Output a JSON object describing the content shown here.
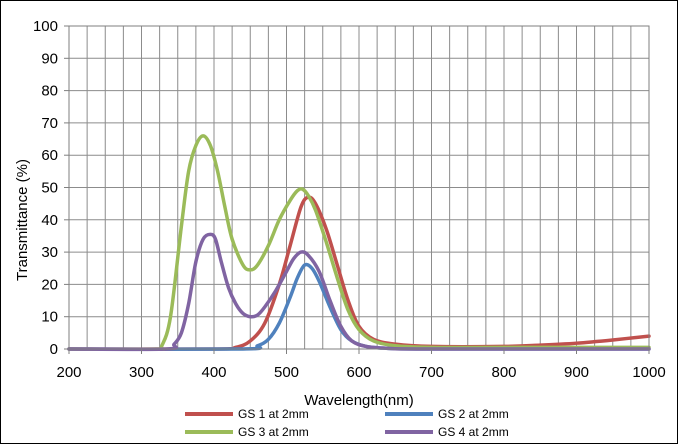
{
  "chart_data": {
    "type": "line",
    "xlabel": "Wavelength(nm)",
    "ylabel": "Transmittance (%)",
    "xlim": [
      200,
      1000
    ],
    "ylim": [
      0,
      100
    ],
    "x_major_ticks": [
      200,
      300,
      400,
      500,
      600,
      700,
      800,
      900,
      1000
    ],
    "y_major_ticks": [
      0,
      10,
      20,
      30,
      40,
      50,
      60,
      70,
      80,
      90,
      100
    ],
    "x_grid_step": 25,
    "y_grid_step": 10,
    "grid": true,
    "legend_position": "bottom",
    "series": [
      {
        "name": "GS 1 at 2mm",
        "color": "#C0504D",
        "points": [
          [
            200,
            0
          ],
          [
            400,
            0
          ],
          [
            430,
            0.5
          ],
          [
            450,
            2.5
          ],
          [
            470,
            8
          ],
          [
            490,
            20
          ],
          [
            505,
            32
          ],
          [
            520,
            44
          ],
          [
            530,
            47
          ],
          [
            540,
            45
          ],
          [
            555,
            37
          ],
          [
            570,
            26
          ],
          [
            585,
            15
          ],
          [
            600,
            7
          ],
          [
            620,
            3
          ],
          [
            650,
            1.5
          ],
          [
            700,
            0.8
          ],
          [
            800,
            0.8
          ],
          [
            850,
            1.2
          ],
          [
            900,
            1.8
          ],
          [
            950,
            2.8
          ],
          [
            1000,
            4
          ]
        ]
      },
      {
        "name": "GS 2 at 2mm",
        "color": "#4F81BD",
        "points": [
          [
            200,
            0
          ],
          [
            440,
            0
          ],
          [
            460,
            1
          ],
          [
            475,
            3
          ],
          [
            490,
            8
          ],
          [
            505,
            16
          ],
          [
            515,
            22
          ],
          [
            525,
            26
          ],
          [
            535,
            25
          ],
          [
            545,
            21
          ],
          [
            560,
            13
          ],
          [
            575,
            6
          ],
          [
            590,
            2.5
          ],
          [
            610,
            0.8
          ],
          [
            640,
            0.2
          ],
          [
            700,
            0
          ],
          [
            1000,
            0
          ]
        ]
      },
      {
        "name": "GS 3 at 2mm",
        "color": "#9BBB59",
        "points": [
          [
            200,
            0
          ],
          [
            320,
            0
          ],
          [
            328,
            1
          ],
          [
            340,
            10
          ],
          [
            355,
            38
          ],
          [
            365,
            55
          ],
          [
            375,
            63
          ],
          [
            385,
            66
          ],
          [
            395,
            63
          ],
          [
            405,
            55
          ],
          [
            415,
            44
          ],
          [
            425,
            34
          ],
          [
            440,
            26
          ],
          [
            450,
            24.5
          ],
          [
            460,
            26
          ],
          [
            475,
            32
          ],
          [
            490,
            40
          ],
          [
            505,
            46
          ],
          [
            515,
            49
          ],
          [
            522,
            49.5
          ],
          [
            530,
            47.5
          ],
          [
            540,
            43
          ],
          [
            555,
            33
          ],
          [
            570,
            22
          ],
          [
            585,
            12
          ],
          [
            600,
            6
          ],
          [
            620,
            2.5
          ],
          [
            650,
            1
          ],
          [
            700,
            0.5
          ],
          [
            800,
            0.5
          ],
          [
            1000,
            0.5
          ]
        ]
      },
      {
        "name": "GS 4 at 2mm",
        "color": "#8064A2",
        "points": [
          [
            200,
            0
          ],
          [
            335,
            0
          ],
          [
            345,
            1.5
          ],
          [
            355,
            5
          ],
          [
            365,
            14
          ],
          [
            375,
            27
          ],
          [
            385,
            34
          ],
          [
            395,
            35.5
          ],
          [
            402,
            34
          ],
          [
            410,
            27
          ],
          [
            420,
            19
          ],
          [
            430,
            14
          ],
          [
            440,
            11
          ],
          [
            450,
            10
          ],
          [
            460,
            10.5
          ],
          [
            470,
            13
          ],
          [
            485,
            18
          ],
          [
            500,
            24
          ],
          [
            510,
            28
          ],
          [
            520,
            30
          ],
          [
            530,
            29
          ],
          [
            545,
            24
          ],
          [
            560,
            15
          ],
          [
            575,
            7
          ],
          [
            590,
            2.5
          ],
          [
            610,
            0.8
          ],
          [
            640,
            0.2
          ],
          [
            700,
            0
          ],
          [
            1000,
            0
          ]
        ]
      }
    ]
  }
}
